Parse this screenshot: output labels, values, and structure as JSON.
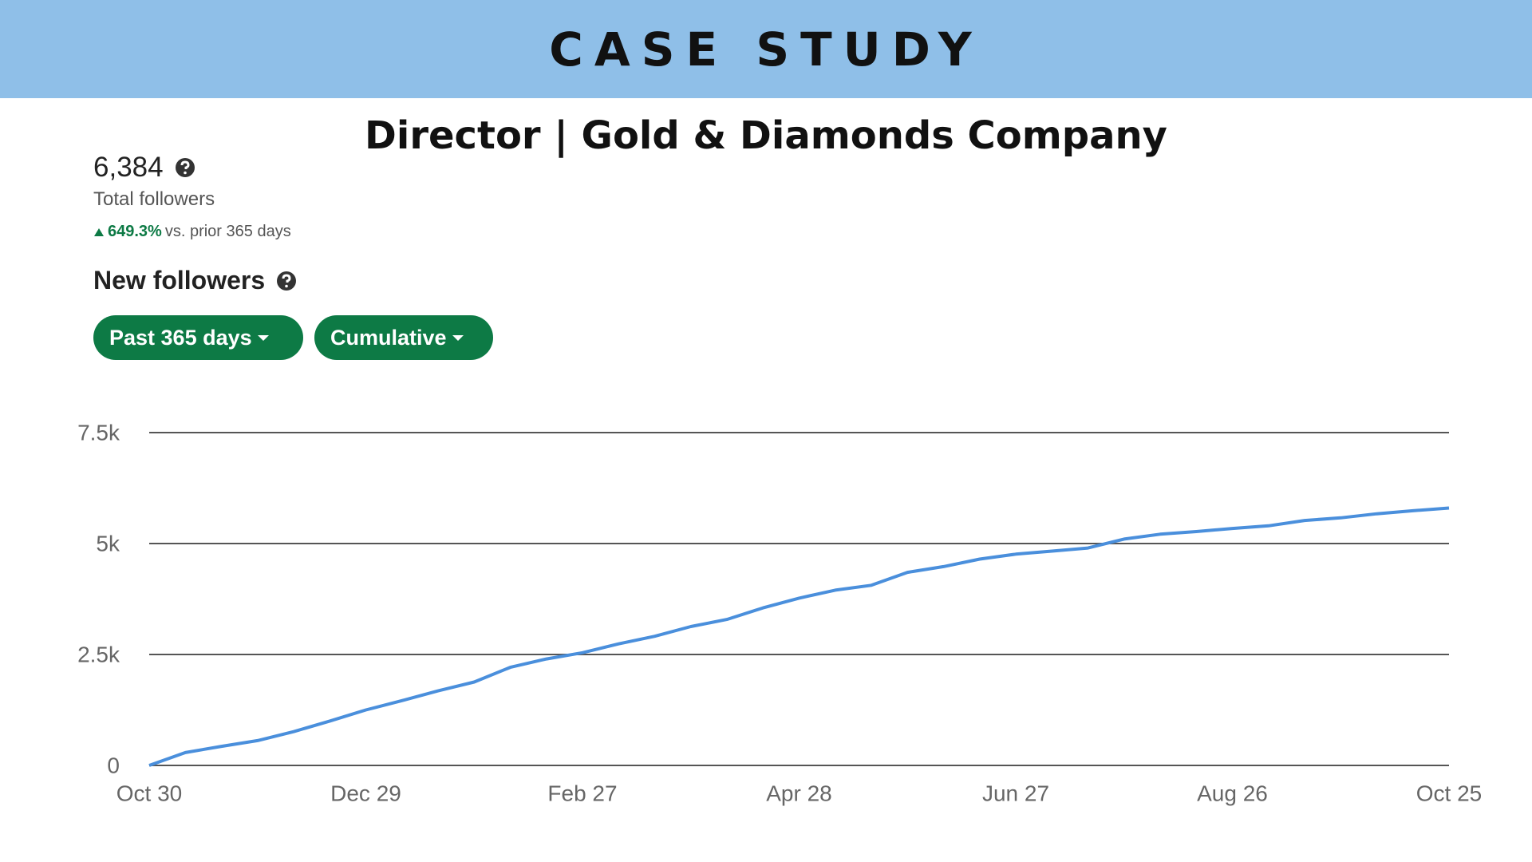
{
  "header": {
    "title": "CASE STUDY"
  },
  "subtitle": "Director | Gold & Diamonds Company",
  "stats": {
    "total": "6,384",
    "total_label": "Total followers",
    "change": "649.3%",
    "change_label": "vs. prior 365 days"
  },
  "section_title": "New followers",
  "filters": [
    "Past 365 days",
    "Cumulative"
  ],
  "chart_data": {
    "type": "line",
    "categories": [
      "Oct 30",
      null,
      null,
      null,
      null,
      null,
      "Dec 29",
      null,
      null,
      null,
      null,
      null,
      "Feb 27",
      null,
      null,
      null,
      null,
      null,
      "Apr 28",
      null,
      null,
      null,
      null,
      null,
      "Jun 27",
      null,
      null,
      null,
      null,
      null,
      "Aug 26",
      null,
      null,
      null,
      null,
      null,
      "Oct 25"
    ],
    "values": [
      0,
      290,
      430,
      560,
      760,
      1000,
      1250,
      1460,
      1680,
      1880,
      2210,
      2400,
      2540,
      2740,
      2910,
      3130,
      3290,
      3550,
      3770,
      3950,
      4060,
      4350,
      4480,
      4650,
      4760,
      4830,
      4900,
      5100,
      5210,
      5270,
      5340,
      5400,
      5520,
      5580,
      5670,
      5740,
      5800
    ],
    "color": "#4a8fdc",
    "ylim": [
      0,
      7500
    ],
    "yticks": [
      0,
      {
        "value": 2500,
        "label": "2.5k"
      },
      {
        "value": 5000,
        "label": "5k"
      },
      {
        "value": 7500,
        "label": "7.5k"
      }
    ],
    "grid": true
  }
}
